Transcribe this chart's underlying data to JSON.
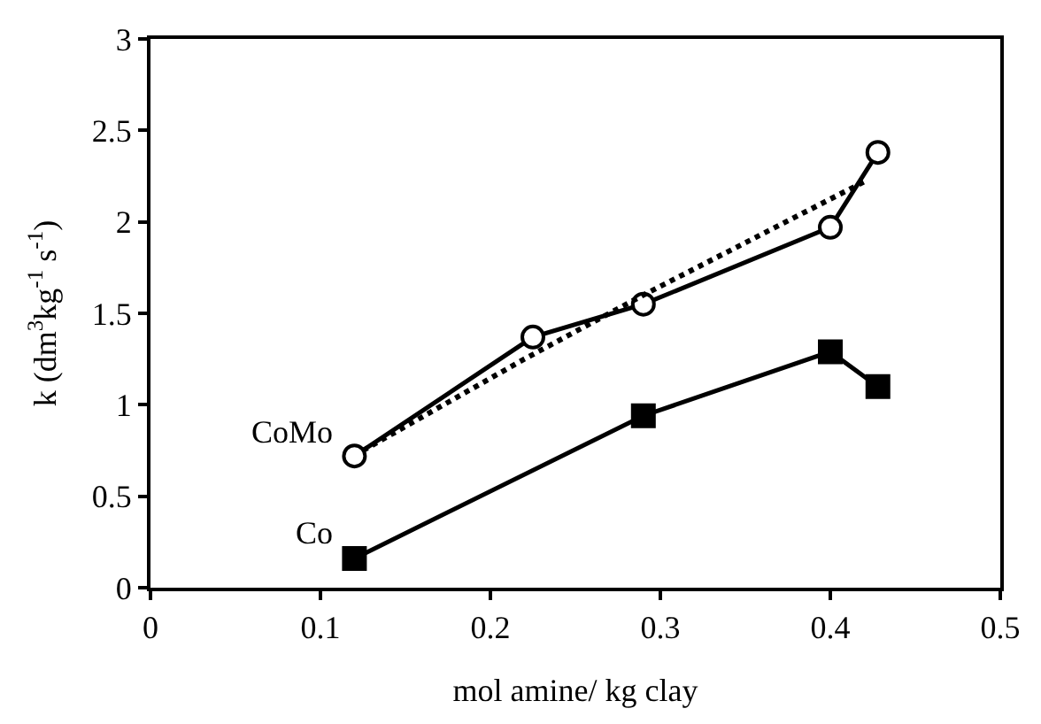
{
  "chart_data": {
    "type": "line",
    "xlabel": "mol amine/ kg clay",
    "ylabel": "k (dm$^{3}$kg$^{-1}$ s$^{-1}$)",
    "xlim": [
      0,
      0.5
    ],
    "xticks": [
      0,
      0.1,
      0.2,
      0.3,
      0.4,
      0.5
    ],
    "ylim": [
      0,
      3
    ],
    "yticks": [
      0,
      0.5,
      1,
      1.5,
      2,
      2.5,
      3
    ],
    "legend": false,
    "series": [
      {
        "name": "CoMo",
        "color": "#000000",
        "marker": "circle",
        "x": [
          0.12,
          0.225,
          0.29,
          0.4,
          0.428
        ],
        "values": [
          0.72,
          1.37,
          1.55,
          1.97,
          2.38
        ]
      },
      {
        "name": "Co",
        "color": "#000000",
        "marker": "square",
        "x": [
          0.12,
          0.29,
          0.4,
          0.428
        ],
        "values": [
          0.16,
          0.94,
          1.29,
          1.1
        ]
      },
      {
        "color": "#000000",
        "marker": "none",
        "line_style": "dotted",
        "x": [
          0.125,
          0.22,
          0.29,
          0.42
        ],
        "values": [
          0.75,
          1.25,
          1.6,
          2.22
        ]
      }
    ]
  }
}
